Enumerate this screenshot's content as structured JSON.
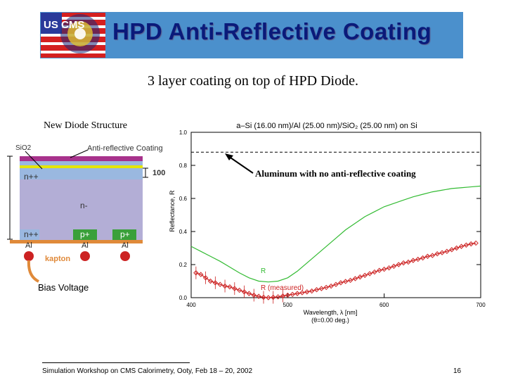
{
  "header": {
    "title": "HPD Anti-Reflective Coating",
    "logo_text": "US CMS",
    "banner_color": "#4b90cc"
  },
  "subtitle": "3 layer coating on top of HPD Diode.",
  "diagram": {
    "caption": "New Diode Structure",
    "sio2_label": "SiO2",
    "arc_label": "Anti-reflective Coating",
    "thickness_label": "100",
    "n_plus_plus_top": "n++",
    "n_region": "n-",
    "n_plus_plus_bottom": "n++",
    "p_plus_1": "p+",
    "p_plus_2": "p+",
    "al_1": "Al",
    "al_2": "Al",
    "al_3": "Al",
    "kapton": "kapton",
    "bias": "Bias Voltage"
  },
  "annotation": "Aluminum with no anti-reflective coating",
  "chart_data": {
    "type": "line",
    "title": "a–Si (16.00 nm)/Al (25.00 nm)/SiO₂ (25.00 nm) on Si",
    "xlabel": "Wavelength, λ [nm]",
    "xlabel2": "(θ=0.00 deg.)",
    "ylabel": "Reflectance, R",
    "xlim": [
      400,
      700
    ],
    "ylim": [
      0.0,
      1.0
    ],
    "xticks": [
      "400",
      "500",
      "600",
      "700"
    ],
    "yticks": [
      "0.0",
      "0.2",
      "0.4",
      "0.6",
      "0.8",
      "1.0"
    ],
    "dashed_reference": {
      "name": "Aluminum reference",
      "y": 0.88
    },
    "series": [
      {
        "name": "R",
        "color": "#33bb33",
        "x": [
          400,
          410,
          420,
          430,
          440,
          450,
          460,
          470,
          480,
          490,
          500,
          510,
          520,
          530,
          540,
          550,
          560,
          570,
          580,
          590,
          600,
          610,
          620,
          630,
          640,
          650,
          660,
          670,
          680,
          690,
          700
        ],
        "y": [
          0.31,
          0.28,
          0.25,
          0.22,
          0.185,
          0.15,
          0.12,
          0.1,
          0.095,
          0.1,
          0.12,
          0.16,
          0.21,
          0.26,
          0.31,
          0.36,
          0.41,
          0.45,
          0.49,
          0.52,
          0.55,
          0.57,
          0.59,
          0.61,
          0.625,
          0.64,
          0.65,
          0.66,
          0.665,
          0.67,
          0.675
        ]
      },
      {
        "name": "R (measured)",
        "color": "#cc2222",
        "x": [
          405,
          410,
          415,
          420,
          425,
          430,
          435,
          440,
          445,
          450,
          455,
          460,
          465,
          470,
          475,
          480,
          485,
          490,
          495,
          500,
          505,
          510,
          515,
          520,
          525,
          530,
          535,
          540,
          545,
          550,
          555,
          560,
          565,
          570,
          575,
          580,
          585,
          590,
          595,
          600,
          605,
          610,
          615,
          620,
          625,
          630,
          635,
          640,
          645,
          650,
          655,
          660,
          665,
          670,
          675,
          680,
          685,
          690,
          695
        ],
        "y": [
          0.15,
          0.14,
          0.12,
          0.1,
          0.09,
          0.08,
          0.07,
          0.065,
          0.055,
          0.045,
          0.035,
          0.025,
          0.015,
          0.008,
          0.002,
          0.0,
          0.002,
          0.005,
          0.01,
          0.015,
          0.02,
          0.025,
          0.03,
          0.035,
          0.04,
          0.048,
          0.055,
          0.062,
          0.07,
          0.08,
          0.09,
          0.098,
          0.105,
          0.115,
          0.125,
          0.135,
          0.145,
          0.155,
          0.165,
          0.172,
          0.18,
          0.19,
          0.2,
          0.21,
          0.215,
          0.225,
          0.232,
          0.24,
          0.25,
          0.255,
          0.265,
          0.272,
          0.28,
          0.29,
          0.3,
          0.31,
          0.318,
          0.325,
          0.33
        ]
      }
    ],
    "legend": [
      "R",
      "R (measured)"
    ]
  },
  "footer": {
    "text": "Simulation Workshop on CMS Calorimetry, Ooty, Feb 18 – 20, 2002",
    "page": "16"
  }
}
